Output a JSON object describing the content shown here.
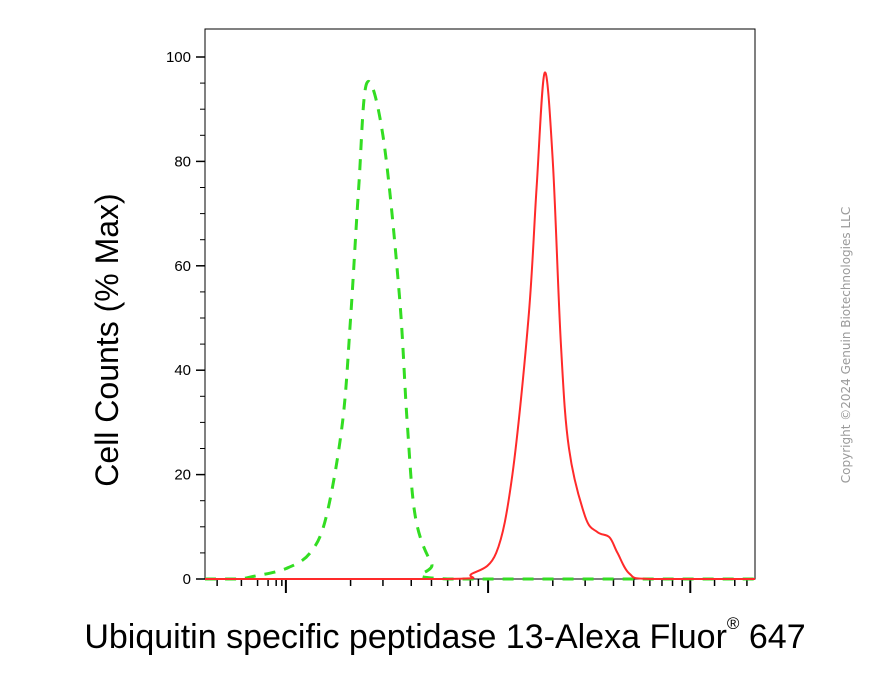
{
  "chart_data": {
    "type": "line",
    "title": "",
    "ylabel": "Cell Counts (% Max)",
    "xlabel_main": "Ubiquitin specific peptidase 13-Alexa Fluor",
    "xlabel_sup": "®",
    "xlabel_tail": " 647",
    "xscale": "log",
    "xlim": [
      -1,
      5.8
    ],
    "ylim": [
      0,
      105
    ],
    "yticks": [
      0,
      20,
      40,
      60,
      80,
      100
    ],
    "x_major_ticks": [
      0,
      2.5,
      5
    ],
    "grid": false,
    "legend": "none",
    "series": [
      {
        "color": "#33dd22",
        "dash": "dashed",
        "x": [
          -1,
          -0.6,
          -0.4,
          0,
          0.3,
          0.5,
          0.7,
          0.8,
          0.9,
          1.0,
          1.2,
          1.4,
          1.5,
          1.6,
          1.8,
          2.0,
          5.8
        ],
        "y": [
          0,
          0,
          0.5,
          2,
          5,
          12,
          30,
          50,
          75,
          95,
          85,
          55,
          30,
          12,
          3,
          0,
          0
        ]
      },
      {
        "color": "#ff2a2a",
        "dash": "solid",
        "x": [
          -1,
          2.0,
          2.3,
          2.6,
          2.8,
          3.0,
          3.1,
          3.2,
          3.3,
          3.4,
          3.5,
          3.7,
          3.85,
          4.0,
          4.1,
          4.25,
          4.5,
          5.8
        ],
        "y": [
          0,
          0,
          1,
          5,
          20,
          50,
          75,
          97,
          80,
          45,
          25,
          12,
          9,
          8,
          5,
          1,
          0,
          0
        ]
      }
    ]
  },
  "copyright": "Copyright ©2024 Genuin Biotechnologies LLC"
}
